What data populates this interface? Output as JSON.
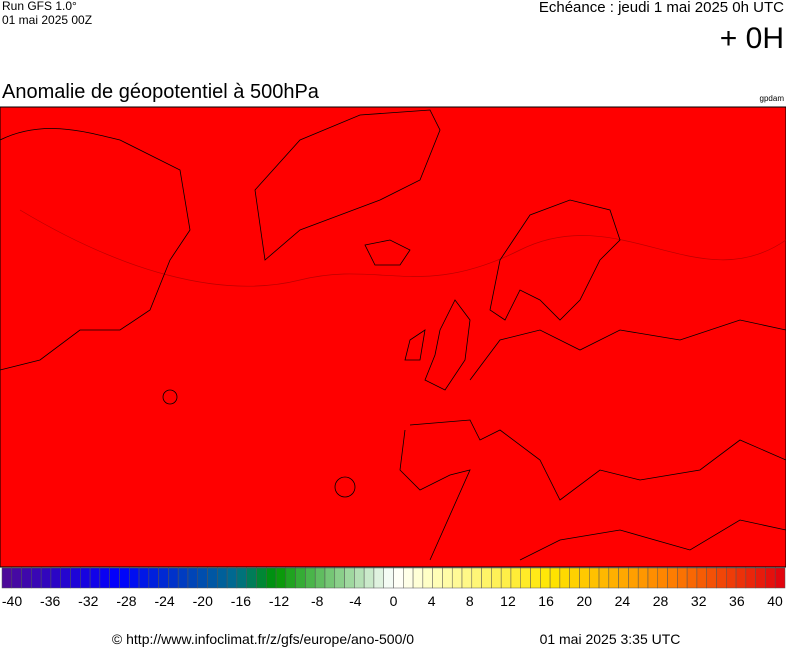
{
  "header": {
    "run": "Run GFS 1.0°",
    "run_date": "01 mai 2025 00Z",
    "valid": "Echéance : jeudi 1 mai 2025 0h UTC",
    "lead": "+ 0H"
  },
  "title": "Anomalie de géopotentiel à 500hPa",
  "unit": "gpdam",
  "colorbar": {
    "ticks": [
      -40,
      -36,
      -32,
      -28,
      -24,
      -20,
      -16,
      -12,
      -8,
      -4,
      0,
      4,
      8,
      12,
      16,
      20,
      24,
      28,
      32,
      36,
      40
    ]
  },
  "footer": {
    "source": "© http://www.infoclimat.fr/z/gfs/europe/ano-500/0",
    "generated": "01 mai 2025  3:35 UTC"
  }
}
